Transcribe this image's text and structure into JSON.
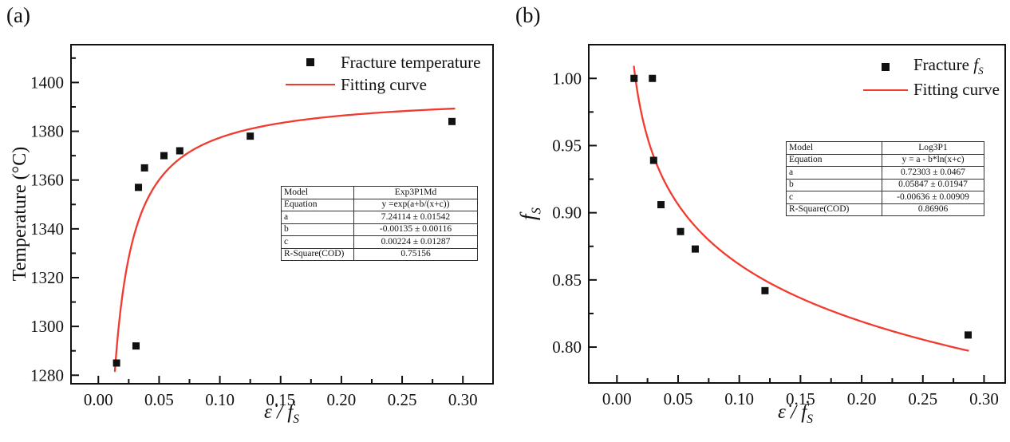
{
  "chart_data": [
    {
      "type": "scatter",
      "panel_label": "(a)",
      "xlabel": {
        "pre": "ε̇ / ḟ",
        "sub": "S"
      },
      "ylabel": "Temperature (°C)",
      "xlim": [
        -0.0225,
        0.3248
      ],
      "ylim": [
        1276.5,
        1415.5
      ],
      "xticks": [
        0,
        0.05,
        0.1,
        0.15,
        0.2,
        0.25,
        0.3
      ],
      "xtick_labels": [
        "0.00",
        "0.05",
        "0.10",
        "0.15",
        "0.20",
        "0.25",
        "0.30"
      ],
      "x_minor": [
        0.025,
        0.075,
        0.125,
        0.175,
        0.225,
        0.275
      ],
      "yticks": [
        1280,
        1300,
        1320,
        1340,
        1360,
        1380,
        1400
      ],
      "ytick_labels": [
        "1280",
        "1300",
        "1320",
        "1340",
        "1360",
        "1380",
        "1400"
      ],
      "y_minor": [
        1290,
        1310,
        1330,
        1350,
        1370,
        1390,
        1410
      ],
      "grid": false,
      "legend_position": "top-right-inside",
      "legend": [
        {
          "marker": "square",
          "label": "Fracture temperature"
        },
        {
          "marker": "line",
          "label": "Fitting curve"
        }
      ],
      "series": [
        {
          "name": "Fracture temperature",
          "type": "scatter",
          "marker": "square",
          "color": "#111111",
          "points": [
            [
              0.015,
              1285
            ],
            [
              0.031,
              1292
            ],
            [
              0.033,
              1357
            ],
            [
              0.038,
              1365
            ],
            [
              0.054,
              1370
            ],
            [
              0.067,
              1372
            ],
            [
              0.125,
              1378
            ],
            [
              0.291,
              1384
            ]
          ]
        },
        {
          "name": "Fitting curve",
          "type": "line",
          "color": "#f13a30",
          "fn": "exp3p1md",
          "equation": "y =exp(a+b/(x+c))",
          "params": {
            "a": 7.24114,
            "b": -0.00135,
            "c": 0.00224
          },
          "x_range": [
            0.0136,
            0.293
          ]
        }
      ],
      "fit_table": {
        "rows": [
          [
            "Model",
            "Exp3P1Md"
          ],
          [
            "Equation",
            "y =exp(a+b/(x+c))"
          ],
          [
            "a",
            "7.24114 ± 0.01542"
          ],
          [
            "b",
            "-0.00135 ± 0.00116"
          ],
          [
            "c",
            "0.00224 ± 0.01287"
          ],
          [
            "R-Square(COD)",
            "0.75156"
          ]
        ]
      }
    },
    {
      "type": "scatter",
      "panel_label": "(b)",
      "xlabel": {
        "pre": "ε̇ / ḟ",
        "sub": "S"
      },
      "ylabel": {
        "main": "f",
        "sub": "S"
      },
      "xlim": [
        -0.023,
        0.3173
      ],
      "ylim": [
        0.7733,
        1.0251
      ],
      "xticks": [
        0,
        0.05,
        0.1,
        0.15,
        0.2,
        0.25,
        0.3
      ],
      "xtick_labels": [
        "0.00",
        "0.05",
        "0.10",
        "0.15",
        "0.20",
        "0.25",
        "0.30"
      ],
      "x_minor": [
        0.025,
        0.075,
        0.125,
        0.175,
        0.225,
        0.275
      ],
      "yticks": [
        0.8,
        0.85,
        0.9,
        0.95,
        1.0
      ],
      "ytick_labels": [
        "0.80",
        "0.85",
        "0.90",
        "0.95",
        "1.00"
      ],
      "y_minor": [
        0.825,
        0.875,
        0.925,
        0.975
      ],
      "grid": false,
      "legend_position": "top-right-inside",
      "legend": [
        {
          "marker": "square",
          "label_pre": "Fracture ",
          "label_italic": "f",
          "label_sub": "S"
        },
        {
          "marker": "line",
          "label": "Fitting curve"
        }
      ],
      "series": [
        {
          "name": "Fracture fS",
          "type": "scatter",
          "marker": "square",
          "color": "#111111",
          "points": [
            [
              0.014,
              1.0
            ],
            [
              0.029,
              1.0
            ],
            [
              0.03,
              0.939
            ],
            [
              0.036,
              0.906
            ],
            [
              0.052,
              0.886
            ],
            [
              0.064,
              0.873
            ],
            [
              0.121,
              0.842
            ],
            [
              0.287,
              0.809
            ]
          ]
        },
        {
          "name": "Fitting curve",
          "type": "line",
          "color": "#f13a30",
          "fn": "log3p1",
          "equation": "y = a - b*ln(x+c)",
          "params": {
            "a": 0.72303,
            "b": 0.05847,
            "c": -0.00636
          },
          "x_range": [
            0.0139,
            0.287
          ]
        }
      ],
      "fit_table": {
        "rows": [
          [
            "Model",
            "Log3P1"
          ],
          [
            "Equation",
            "y = a - b*ln(x+c)"
          ],
          [
            "a",
            "0.72303 ± 0.0467"
          ],
          [
            "b",
            "0.05847 ± 0.01947"
          ],
          [
            "c",
            "-0.00636 ± 0.00909"
          ],
          [
            "R-Square(COD)",
            "0.86906"
          ]
        ]
      }
    }
  ]
}
